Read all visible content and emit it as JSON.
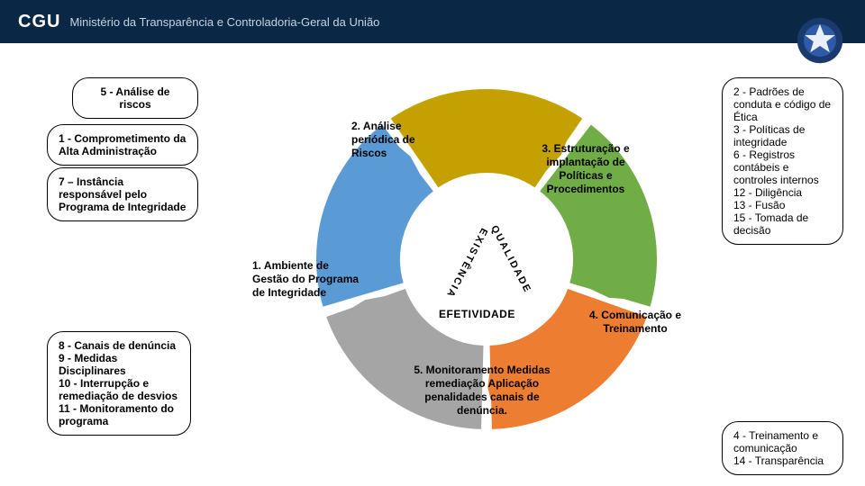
{
  "header": {
    "logo": "CGU",
    "subtitle": "Ministério da Transparência e Controladoria-Geral da União"
  },
  "boxes": {
    "b5": "5 - Análise de riscos",
    "b1": "1 - Comprometimento da Alta Administração",
    "b7": "7 – Instância responsável pelo Programa de Integridade",
    "b8": "8 - Canais de denúncia\n9 - Medidas Disciplinares\n10 - Interrupção e remediação de desvios\n11 - Monitoramento do programa",
    "rightTop": "2 - Padrões de conduta e código de Ética\n3 - Políticas de integridade\n6 - Registros contábeis e controles internos\n12 - Diligência\n13 - Fusão\n15 - Tomada de decisão",
    "rightBot": "4 - Treinamento e comunicação\n14 - Transparência"
  },
  "donut": {
    "segments": [
      {
        "label": "1.   Ambiente de Gestão do Programa de Integridade",
        "color": "#5b9bd5"
      },
      {
        "label": "2.   Análise periódica de Riscos",
        "color": "#c5a100"
      },
      {
        "label": "3. Estruturação e implantação de Políticas e Procedimentos",
        "color": "#70ad47"
      },
      {
        "label": "4. Comunicação e Treinamento",
        "color": "#ed7d31"
      },
      {
        "label": "5. Monitoramento Medidas remediação Aplicação penalidades canais de denúncia.",
        "color": "#a5a5a5"
      }
    ],
    "innerLeft": "EXISTÊNCIA",
    "innerRight": "QUALIDADE",
    "innerBottom": "EFETIVIDADE",
    "bg": "#ffffff",
    "seg_gap_deg": 3,
    "outer_r": 190,
    "inner_r": 95
  }
}
